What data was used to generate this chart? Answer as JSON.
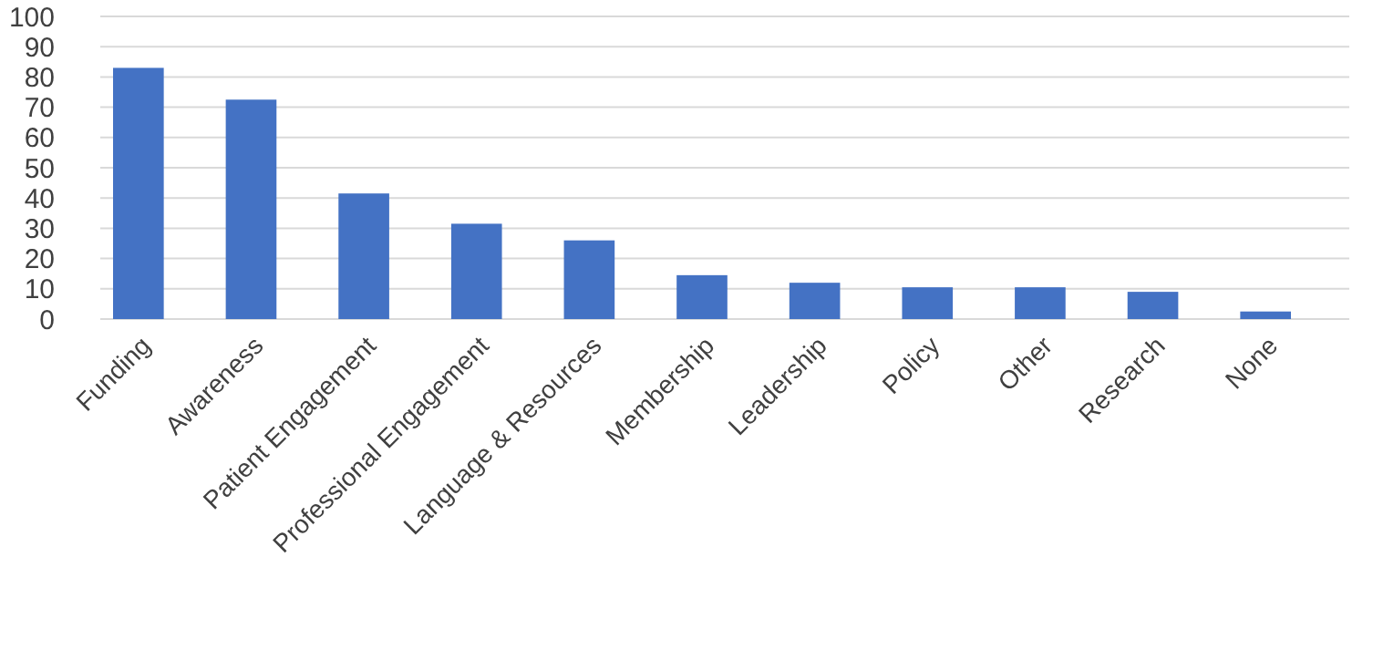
{
  "chart_data": {
    "type": "bar",
    "categories": [
      "Funding",
      "Awareness",
      "Patient Engagement",
      "Professional Engagement",
      "Language & Resources",
      "Membership",
      "Leadership",
      "Policy",
      "Other",
      "Research",
      "None"
    ],
    "values": [
      83,
      72.5,
      41.5,
      31.5,
      26,
      14.5,
      12,
      10.5,
      10.5,
      9,
      2.5
    ],
    "color": "#4472c4",
    "ylim": [
      0,
      100
    ],
    "yticks": [
      0,
      10,
      20,
      30,
      40,
      50,
      60,
      70,
      80,
      90,
      100
    ],
    "grid": "y"
  }
}
